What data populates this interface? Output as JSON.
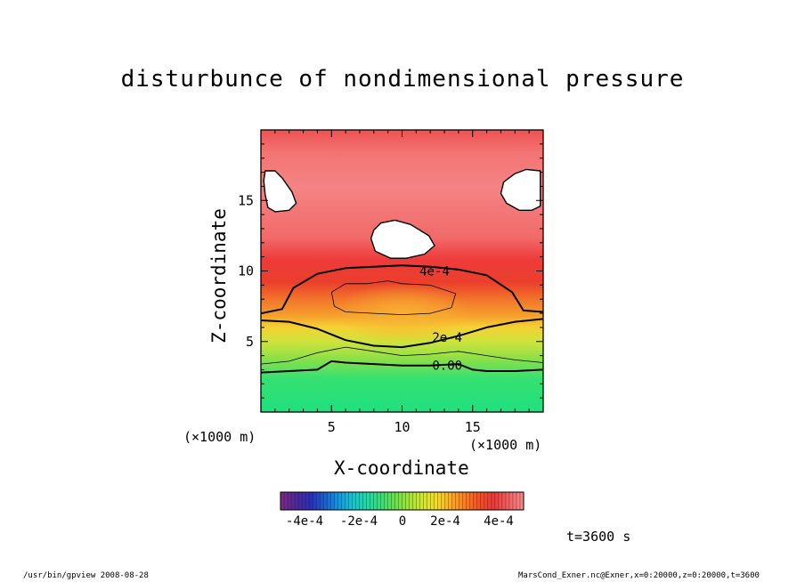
{
  "chart_data": {
    "type": "heatmap",
    "title": "disturbunce of nondimensional pressure",
    "xlabel": "X-coordinate",
    "ylabel": "Z-coordinate",
    "x_unit": "(×1000 m)",
    "y_unit": "(×1000 m)",
    "xlim": [
      0,
      20
    ],
    "ylim": [
      0,
      20
    ],
    "x_ticks": [
      5,
      10,
      15
    ],
    "y_ticks": [
      5,
      10,
      15
    ],
    "x_tick_labels": [
      "5",
      "10",
      "15"
    ],
    "y_tick_labels": [
      "5",
      "10",
      "15"
    ],
    "contours": [
      {
        "label": "4e-4",
        "level": 0.0004,
        "label_at": [
          12.3,
          10.0
        ],
        "points": [
          [
            0,
            7.0
          ],
          [
            1.5,
            7.3
          ],
          [
            2.3,
            8.8
          ],
          [
            4,
            9.8
          ],
          [
            6,
            10.2
          ],
          [
            8,
            10.3
          ],
          [
            10,
            10.4
          ],
          [
            12,
            10.3
          ],
          [
            14,
            10.1
          ],
          [
            16,
            9.7
          ],
          [
            17.8,
            8.5
          ],
          [
            18.6,
            7.2
          ],
          [
            20,
            7.1
          ]
        ]
      },
      {
        "label": "2e-4",
        "level": 0.0002,
        "label_at": [
          13.2,
          5.3
        ],
        "points": [
          [
            0,
            6.5
          ],
          [
            2,
            6.4
          ],
          [
            4,
            5.9
          ],
          [
            6,
            5.1
          ],
          [
            8,
            4.7
          ],
          [
            10,
            4.6
          ],
          [
            12,
            4.9
          ],
          [
            14,
            5.4
          ],
          [
            16,
            6.0
          ],
          [
            18,
            6.4
          ],
          [
            20,
            6.6
          ]
        ]
      },
      {
        "label": "0.00",
        "level": 0.0,
        "label_at": [
          13.2,
          3.3
        ],
        "points": [
          [
            0,
            2.8
          ],
          [
            2,
            2.9
          ],
          [
            4,
            3.0
          ],
          [
            5,
            3.6
          ],
          [
            6,
            3.5
          ],
          [
            8,
            3.4
          ],
          [
            10,
            3.3
          ],
          [
            12,
            3.3
          ],
          [
            14,
            3.4
          ],
          [
            15,
            3.0
          ],
          [
            16,
            2.9
          ],
          [
            18,
            2.9
          ],
          [
            20,
            3.0
          ]
        ]
      }
    ],
    "minor_contours": [
      {
        "level": 0.0003,
        "points": [
          [
            5,
            8.5
          ],
          [
            6,
            9.1
          ],
          [
            7.5,
            9.1
          ],
          [
            9,
            9.3
          ],
          [
            10,
            9.1
          ],
          [
            12,
            9.0
          ],
          [
            13.8,
            8.4
          ],
          [
            13.5,
            7.4
          ],
          [
            12,
            7.0
          ],
          [
            10,
            6.9
          ],
          [
            8,
            7.0
          ],
          [
            6,
            7.1
          ],
          [
            5.2,
            7.5
          ],
          [
            5,
            8.5
          ]
        ]
      },
      {
        "level": 0.0001,
        "points": [
          [
            0,
            3.4
          ],
          [
            2,
            3.6
          ],
          [
            4,
            4.2
          ],
          [
            6,
            4.6
          ],
          [
            8,
            4.3
          ],
          [
            10,
            4.0
          ],
          [
            12,
            4.1
          ],
          [
            14,
            4.3
          ],
          [
            16,
            4.0
          ],
          [
            18,
            3.7
          ],
          [
            20,
            3.5
          ]
        ]
      }
    ],
    "white_regions": [
      {
        "points": [
          [
            1.0,
            17.1
          ],
          [
            1.5,
            16.6
          ],
          [
            2.2,
            15.6
          ],
          [
            2.5,
            14.8
          ],
          [
            2.0,
            14.3
          ],
          [
            1.0,
            14.2
          ],
          [
            0.5,
            14.5
          ],
          [
            0.3,
            15.4
          ],
          [
            0.2,
            16.4
          ],
          [
            0.3,
            17.1
          ]
        ]
      },
      {
        "points": [
          [
            19.8,
            17.1
          ],
          [
            18.8,
            17.2
          ],
          [
            18,
            16.9
          ],
          [
            17.2,
            16.3
          ],
          [
            17.0,
            15.5
          ],
          [
            17.4,
            14.8
          ],
          [
            18.3,
            14.3
          ],
          [
            19.2,
            14.3
          ],
          [
            19.8,
            14.6
          ]
        ]
      },
      {
        "points": [
          [
            8.5,
            13.4
          ],
          [
            9.5,
            13.6
          ],
          [
            10.6,
            13.3
          ],
          [
            11.9,
            12.5
          ],
          [
            12.3,
            11.8
          ],
          [
            11.6,
            11.2
          ],
          [
            10.3,
            10.9
          ],
          [
            9.2,
            10.9
          ],
          [
            8.1,
            11.4
          ],
          [
            7.8,
            12.3
          ],
          [
            8.0,
            12.9
          ]
        ]
      }
    ],
    "colorbar": {
      "tick_labels": [
        "-4e-4",
        "-2e-4",
        "0",
        "2e-4",
        "4e-4"
      ],
      "colors": [
        "#7a2a86",
        "#4b2a9a",
        "#2b2fb5",
        "#1d5fc8",
        "#1a95d8",
        "#1fc1c9",
        "#2ad4a4",
        "#42d879",
        "#6cdc52",
        "#a4e040",
        "#d3e33a",
        "#f0d932",
        "#f6aa2c",
        "#f37e2a",
        "#ee5229",
        "#e63b3b",
        "#f06060",
        "#f48686"
      ]
    }
  },
  "annotations": {
    "time": "t=3600 s",
    "footer_left": "/usr/bin/gpview   2008-08-28",
    "footer_right": "MarsCond_Exner.nc@Exner,x=0:20000,z=0:20000,t=3600"
  }
}
